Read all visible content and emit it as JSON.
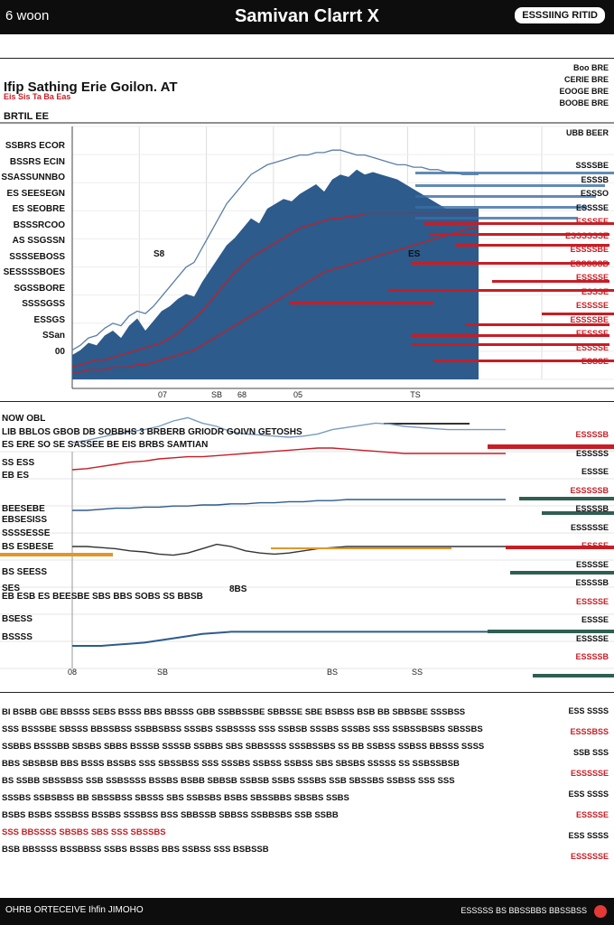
{
  "header": {
    "left_text": "6 woon",
    "title": "Samivan Clarrt X",
    "button_label": "ESSSIING RITID"
  },
  "subheader": {
    "title": "Ifip Sathing Erie Goilon",
    "title_suffix": ". AT",
    "note": "Eis Sis Ta Ba Eas",
    "section_label": "BRTIL EE",
    "right_lines": [
      "Boo BRE",
      "CERIE BRE",
      "EOOGE BRE",
      "BOOBE BRE"
    ]
  },
  "chart_top": {
    "corner_label": "UBB BEER",
    "y_labels": [
      "SSBRS ECOR",
      "BSSRS ECIN",
      "SSASSUNNBO",
      "ES SEESEGN",
      "ES SEOBRE",
      "BSSSRCOO",
      "AS SSGSSN",
      "SSSSEBOSS",
      "SESSSSBOES",
      "SGSSBORE",
      "SSSSGSS",
      "ESSGS",
      "SSan",
      "00"
    ],
    "x_labels": [
      "07",
      "SB",
      "68",
      "05",
      "TS"
    ],
    "annotation": "S8",
    "annotation2": "ES",
    "right_labels": [
      "SSSSBE",
      "ESSSB",
      "ESSSO",
      "ESSSSE",
      "ESSSEE",
      "ESSSSSSE",
      "ESSSSBE",
      "ESSSSSB",
      "ESSSSE",
      "ESSSE",
      "ESSSSE",
      "ESSSSBE",
      "EESSSE",
      "ESSSSE",
      "ESSSE"
    ]
  },
  "chart_data": [
    {
      "type": "area",
      "title": "",
      "x": [
        0,
        1,
        2,
        3,
        4,
        5,
        6,
        7,
        8,
        9,
        10,
        11,
        12,
        13,
        14,
        15,
        16,
        17,
        18,
        19,
        20,
        21,
        22,
        23,
        24,
        25,
        26,
        27,
        28,
        29,
        30,
        31,
        32,
        33,
        34,
        35,
        36,
        37,
        38,
        39,
        40,
        41,
        42,
        43,
        44,
        45,
        46,
        47,
        48,
        49,
        50
      ],
      "series": [
        {
          "values": [
            10,
            12,
            15,
            14,
            18,
            20,
            17,
            22,
            25,
            20,
            24,
            28,
            30,
            33,
            35,
            34,
            40,
            45,
            50,
            55,
            58,
            62,
            66,
            64,
            70,
            72,
            74,
            73,
            76,
            78,
            80,
            77,
            82,
            84,
            83,
            86,
            84,
            85,
            84,
            83,
            82,
            80,
            78,
            76,
            74,
            72,
            70,
            70,
            70,
            70,
            70
          ]
        },
        {
          "values": [
            12,
            14,
            17,
            18,
            21,
            23,
            22,
            26,
            28,
            27,
            30,
            34,
            38,
            42,
            46,
            48,
            54,
            60,
            66,
            72,
            76,
            80,
            84,
            86,
            88,
            89,
            90,
            91,
            92,
            92,
            93,
            93,
            94,
            94,
            93,
            92,
            92,
            91,
            90,
            89,
            88,
            88,
            87,
            87,
            86,
            86,
            85,
            85,
            84,
            84,
            84
          ]
        },
        {
          "values": [
            5,
            6,
            7,
            8,
            8,
            9,
            10,
            11,
            12,
            13,
            14,
            15,
            17,
            19,
            22,
            25,
            28,
            32,
            36,
            40,
            44,
            47,
            50,
            52,
            54,
            56,
            58,
            60,
            62,
            63,
            64,
            65,
            66,
            66,
            67,
            67,
            68,
            68,
            68,
            68,
            68,
            68,
            68,
            68,
            68,
            68,
            68,
            68,
            68,
            68,
            68
          ]
        },
        {
          "values": [
            3,
            3,
            4,
            4,
            4,
            5,
            5,
            5,
            6,
            6,
            7,
            8,
            9,
            10,
            11,
            12,
            14,
            16,
            18,
            20,
            22,
            24,
            26,
            28,
            30,
            32,
            34,
            36,
            38,
            40,
            42,
            44,
            45,
            46,
            47,
            48,
            49,
            50,
            51,
            52,
            53,
            54,
            55,
            56,
            57,
            58,
            59,
            60,
            61,
            62,
            62
          ]
        },
        {
          "values": [
            2,
            2,
            2,
            2,
            2,
            3,
            3,
            3,
            3,
            3,
            3,
            3,
            3,
            3,
            3,
            3,
            3,
            3,
            3,
            3,
            3,
            3,
            3,
            3,
            3,
            3,
            3,
            3,
            3,
            4,
            4,
            5,
            5,
            6,
            6,
            7,
            7,
            8,
            8,
            9,
            9,
            9,
            9,
            9,
            9,
            9,
            9,
            9,
            9,
            9,
            9
          ]
        }
      ],
      "xlabel": "",
      "ylabel": ""
    },
    {
      "type": "line",
      "title": "",
      "x": [
        0,
        1,
        2,
        3,
        4,
        5,
        6,
        7,
        8,
        9,
        10,
        11,
        12,
        13,
        14,
        15,
        16,
        17,
        18,
        19,
        20,
        21,
        22,
        23,
        24,
        25,
        26,
        27,
        28,
        29,
        30
      ],
      "series": [
        {
          "values": [
            40,
            42,
            45,
            48,
            50,
            52,
            55,
            60,
            63,
            58,
            55,
            50,
            48,
            47,
            46,
            45,
            46,
            48,
            52,
            54,
            56,
            58,
            57,
            55,
            54,
            53,
            52,
            52,
            52,
            52,
            52
          ]
        },
        {
          "values": [
            30,
            31,
            33,
            35,
            37,
            38,
            40,
            41,
            42,
            42,
            43,
            44,
            45,
            46,
            47,
            48,
            49,
            50,
            50,
            49,
            48,
            47,
            46,
            45,
            45,
            45,
            45,
            45,
            45,
            45,
            45
          ]
        },
        {
          "values": [
            20,
            20,
            21,
            22,
            22,
            23,
            23,
            24,
            24,
            25,
            25,
            26,
            26,
            27,
            27,
            28,
            28,
            29,
            29,
            30,
            30,
            30,
            30,
            30,
            30,
            30,
            30,
            30,
            30,
            30,
            30
          ]
        },
        {
          "values": [
            10,
            10,
            9,
            8,
            6,
            5,
            3,
            2,
            4,
            8,
            12,
            10,
            6,
            4,
            3,
            4,
            6,
            8,
            9,
            10,
            10,
            10,
            10,
            10,
            10,
            10,
            10,
            10,
            10,
            10,
            10
          ]
        },
        {
          "values": [
            0,
            0,
            0,
            1,
            2,
            3,
            5,
            7,
            9,
            11,
            12,
            13,
            13,
            13,
            13,
            13,
            13,
            13,
            13,
            13,
            13,
            13,
            13,
            13,
            13,
            13,
            13,
            13,
            13,
            13,
            13
          ]
        }
      ],
      "xlabel": "",
      "ylabel": ""
    }
  ],
  "chart_mid": {
    "head_left": "NOW OBL",
    "head_line": "LIB BBLOS GBOB DB SOBBHS 3 BRBERB GRIODR GOIVN GETOSHS",
    "head_line2": "ES ERE SO SE SASSEE BE EIS BRBS SAMTIAN",
    "left_labels": [
      "SS ESS",
      "EB ES",
      "BEESEBE",
      "EBSESISS",
      "SSSSESSE",
      "BS ESBESE",
      "BS SEESS",
      "SES",
      "BSESS",
      "BSSSS"
    ],
    "middle_head": "EB ESB ES BEESBE SBS BBS SOBS SS BBSB",
    "x_labels": [
      "08",
      "SB",
      "BS",
      "SS"
    ],
    "annotation": "8BS",
    "right_labels": [
      "ESSSSB",
      "ESSSSS",
      "ESSSE",
      "ESSSSSB",
      "ESSSSB",
      "ESSSSSE",
      "ESSSE",
      "ESSSSE",
      "ESSSSB",
      "ESSSSE",
      "ESSSE",
      "ESSSSE",
      "ESSSSB"
    ]
  },
  "text_block": {
    "lines": [
      "BI BSBB GBE BBSSS SEBS BSSS BBS BBSSS GBB SSBBSSBE SBBSSE SBE BSBSS BSB BB SBBSBE SSSBSS",
      "SSS BSSSBE SBSSS BBSSBSS SSBBSBSS SSSBS SSBSSSS SSS SSBSB SSSBS SSSBS SSS SSBSSBSBS SBSSBS",
      "SSBBS BSSSBB SBSBS SBBS BSSSB SSSSB SSBBS SBS SBBSSSS SSSBSSBS SS BB SSBSS SSBSS BBSSS SSSS",
      "BBS SBSBSB BBS BSSS BSSBS SSS SBSSBSS SSS SSSBS SSBSS SSBSS SBS SBSBS SSSSS SS SSBSSBSB",
      "BS SSBB SBSSBSS SSB SSBSSSS BSSBS BSBB SBBSB SSBSB SSBS SSSBS SSB SBSSBS SSBSS SSS SSS",
      "SSSBS SSBSBSS BB SBSSBSS SBSSS SBS SSBSBS BSBS SBSSBBS SBSBS SSBS",
      "BSBS BSBS SSSBSS BSSBS SSSBSS BSS SBBSSB SBBSS SSBBSBS SSB SSBB",
      "SSS BBSSSS SBSBS SBS SSS SBSSBS",
      "BSB BBSSSS BSSBBSS SSBS BSSBS BBS SSBSS SSS BSBSSB"
    ],
    "right_labels": [
      "ESS SSSS",
      "ESSSBSS",
      "SSB SSS",
      "ESSSSSE",
      "ESS SSSS",
      "ESSSSE",
      "ESS SSSS",
      "ESSSSSE"
    ]
  },
  "footer": {
    "left_text": "OHRB ORTECEIVE Ihfin JIMOHO",
    "right_text": "ESSSSS BS BBSSBBS BBSSBSS"
  }
}
